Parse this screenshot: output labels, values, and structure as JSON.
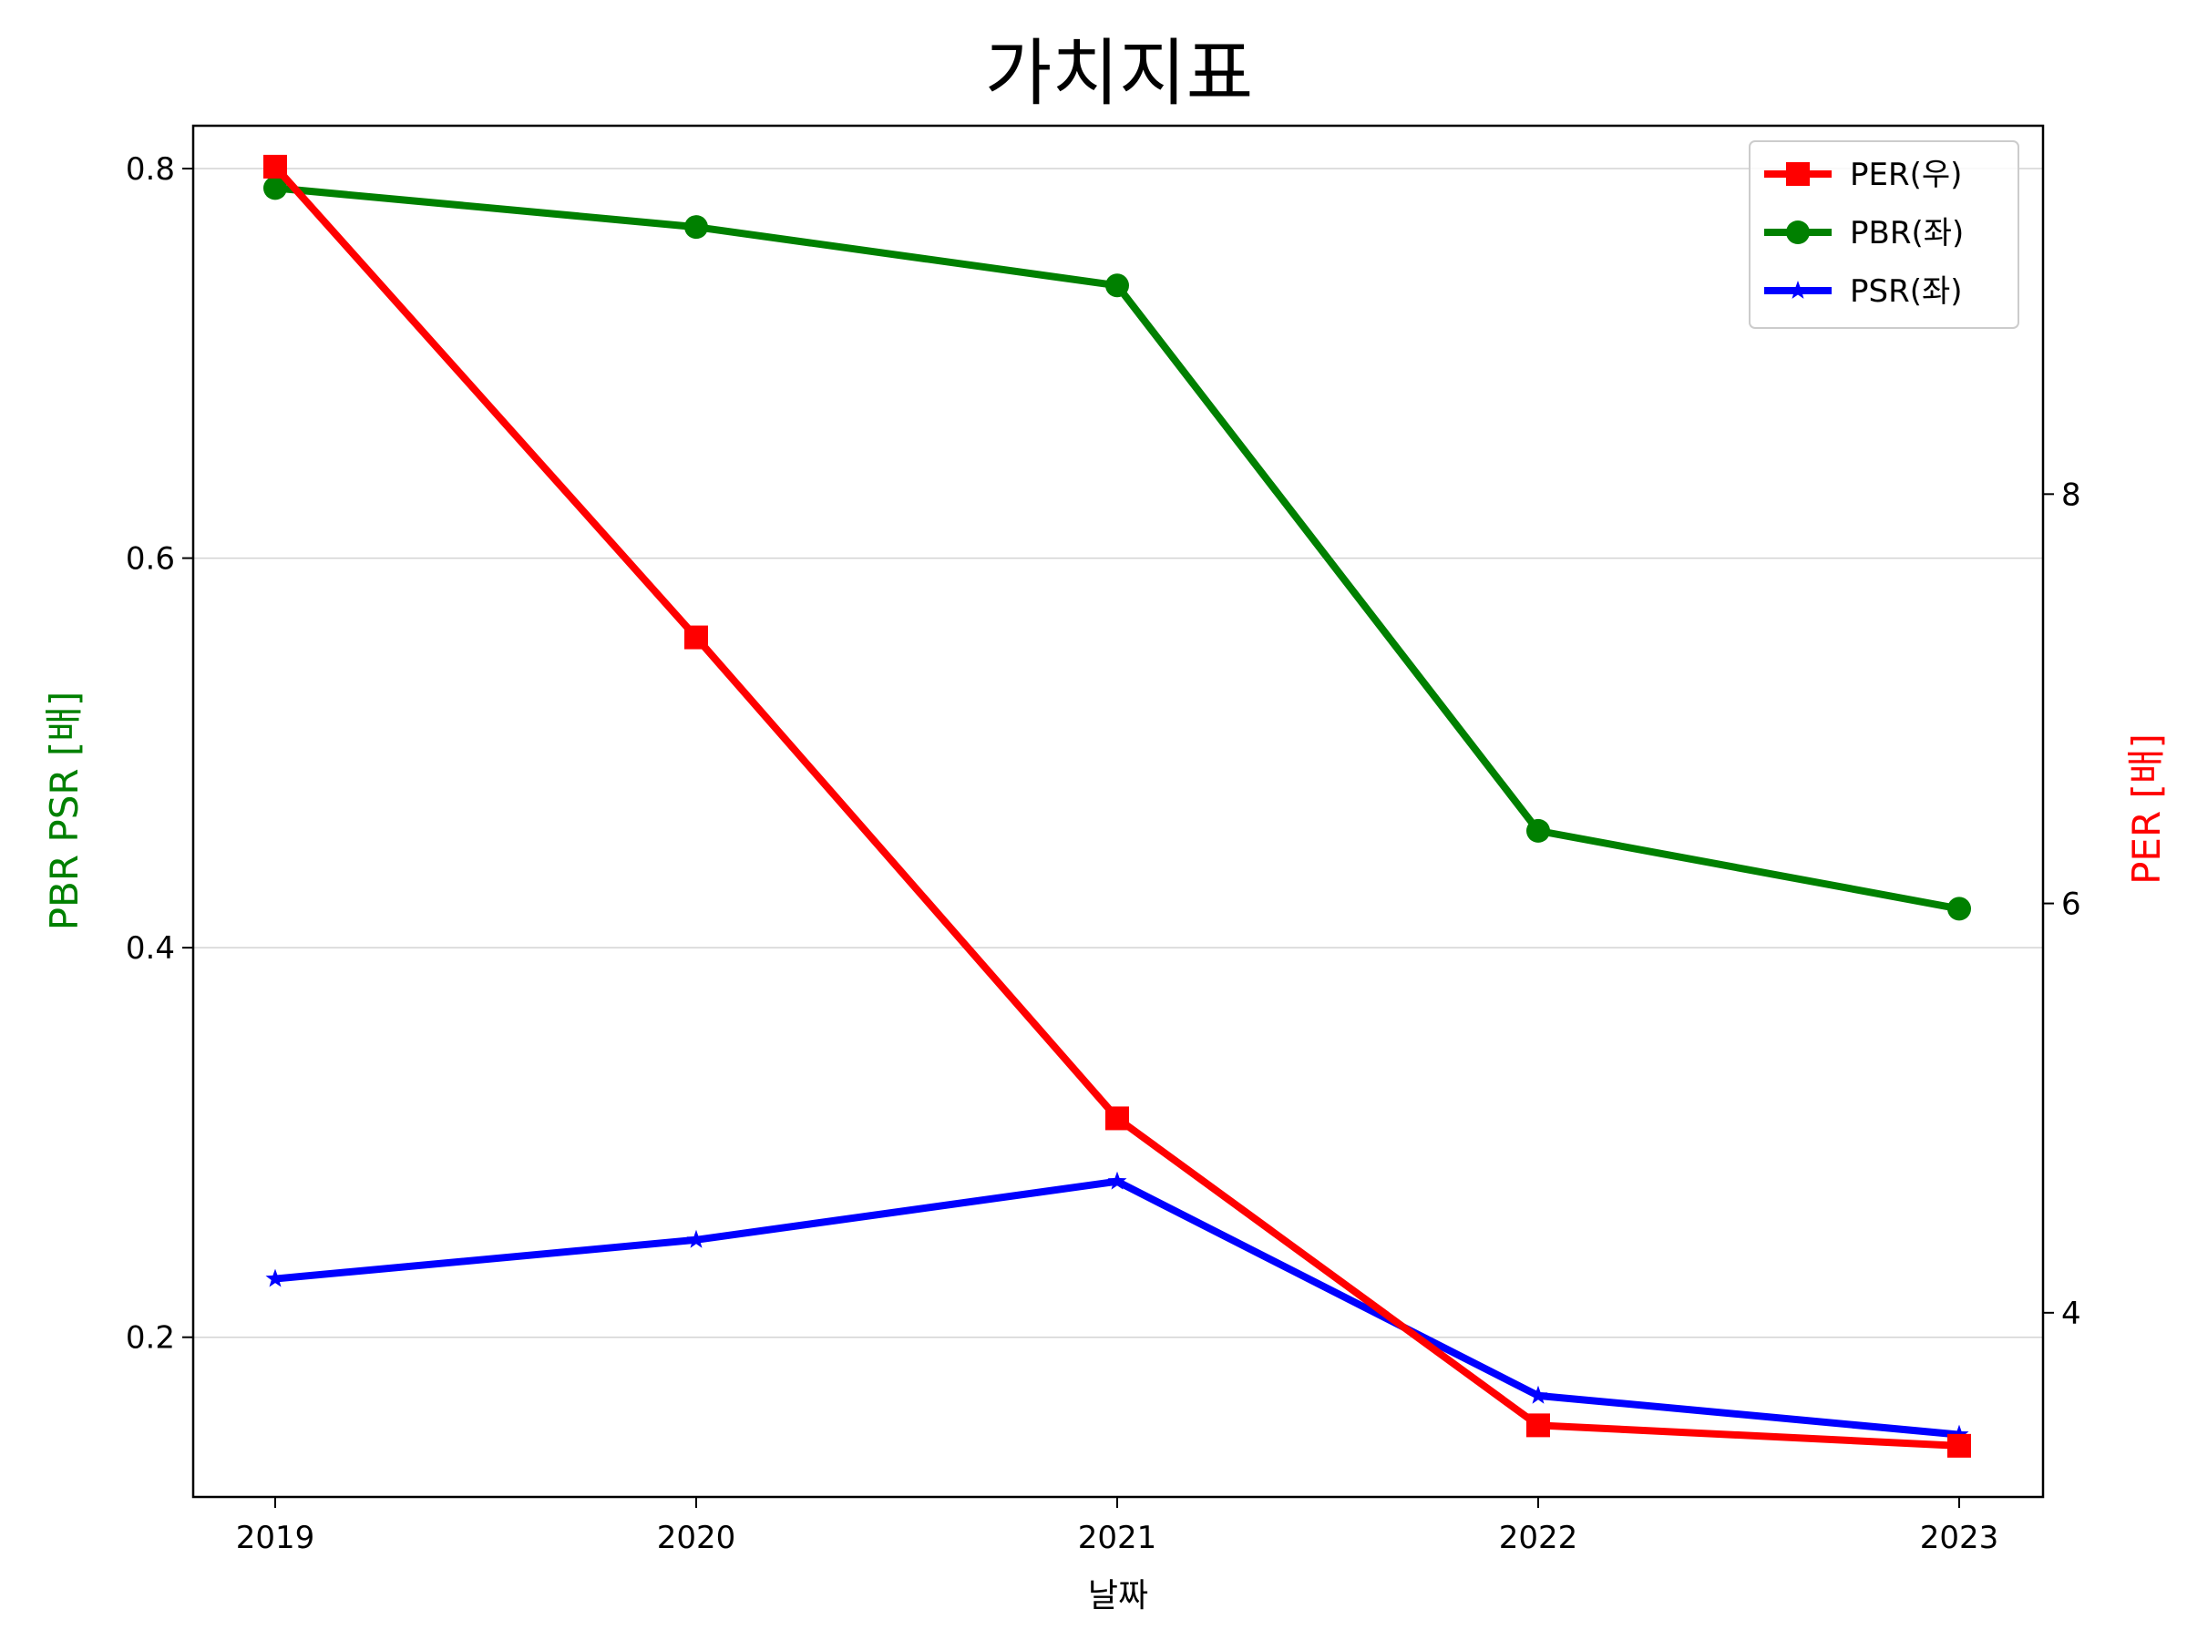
{
  "chart_data": {
    "type": "line",
    "title": "가치지표",
    "xlabel": "날짜",
    "ylabel_left": "PBR PSR [배]",
    "ylabel_right": "PER [배]",
    "x": [
      "2019",
      "2020",
      "2021",
      "2022",
      "2023"
    ],
    "ylim_left": [
      0.118,
      0.822
    ],
    "ylim_right": [
      3.1,
      9.8
    ],
    "yticks_left": [
      "0.2",
      "0.4",
      "0.6",
      "0.8"
    ],
    "yticks_right": [
      "4",
      "6",
      "8"
    ],
    "grid": "horizontal (left axis)",
    "legend_position": "top-right",
    "series": [
      {
        "name": "PER(우)",
        "axis": "right",
        "color": "#ff0000",
        "marker": "square",
        "values": [
          9.6,
          7.3,
          4.95,
          3.45,
          3.35
        ]
      },
      {
        "name": "PBR(좌)",
        "axis": "left",
        "color": "#008000",
        "marker": "circle",
        "values": [
          0.79,
          0.77,
          0.74,
          0.46,
          0.42
        ]
      },
      {
        "name": "PSR(좌)",
        "axis": "left",
        "color": "#0000ff",
        "marker": "star",
        "values": [
          0.23,
          0.25,
          0.28,
          0.17,
          0.15
        ]
      }
    ]
  }
}
